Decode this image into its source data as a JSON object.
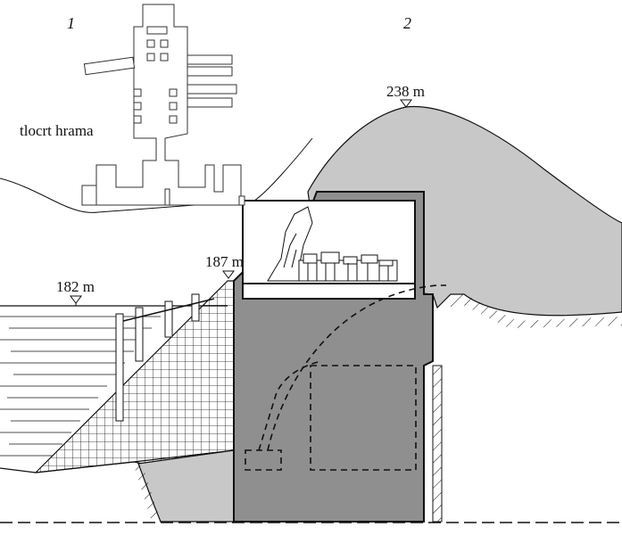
{
  "figure": {
    "panel_labels": [
      "1",
      "2"
    ],
    "caption_plan": "tlocrt hrama",
    "elevations": {
      "water": "182 m",
      "dam_crest": "187 m",
      "hill_top": "238 m"
    }
  },
  "colors": {
    "hill": "#c8c8c8",
    "concrete": "#8f8f8f",
    "lower_rock": "#c8c8c8",
    "line": "#111111"
  }
}
